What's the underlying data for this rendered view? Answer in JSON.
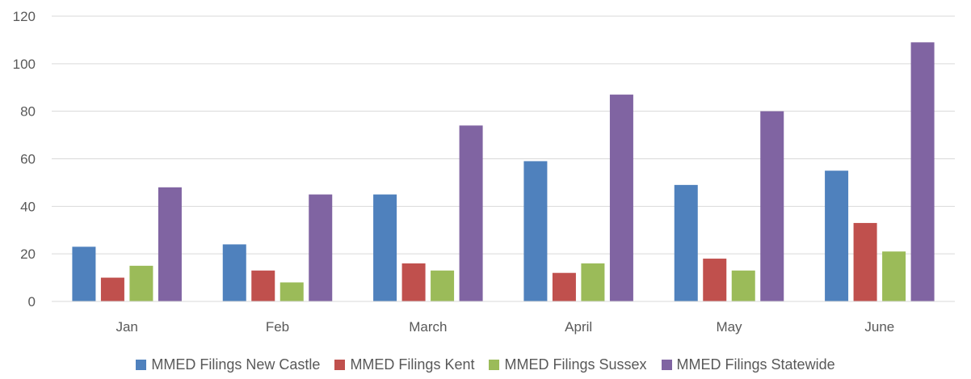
{
  "chart_data": {
    "type": "bar",
    "categories": [
      "Jan",
      "Feb",
      "March",
      "April",
      "May",
      "June"
    ],
    "series": [
      {
        "name": "MMED Filings New Castle",
        "color": "#4F81BD",
        "values": [
          23,
          24,
          45,
          59,
          49,
          55
        ]
      },
      {
        "name": "MMED Filings Kent",
        "color": "#C0504D",
        "values": [
          10,
          13,
          16,
          12,
          18,
          33
        ]
      },
      {
        "name": "MMED Filings Sussex",
        "color": "#9BBB59",
        "values": [
          15,
          8,
          13,
          16,
          13,
          21
        ]
      },
      {
        "name": "MMED Filings Statewide",
        "color": "#8064A2",
        "values": [
          48,
          45,
          74,
          87,
          80,
          109
        ]
      }
    ],
    "ylim": [
      0,
      120
    ],
    "yticks": [
      "0",
      "20",
      "40",
      "60",
      "80",
      "100",
      "120"
    ],
    "grid": true,
    "legend_position": "bottom"
  }
}
